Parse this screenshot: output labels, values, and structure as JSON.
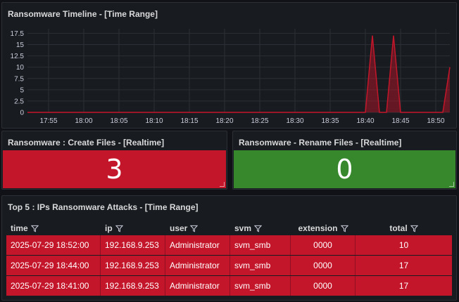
{
  "timeline": {
    "title": "Ransomware Timeline - [Time Range]",
    "chart_data": {
      "type": "line",
      "ylim": [
        0,
        18.5
      ],
      "y_ticks": [
        "0",
        "2.5",
        "5",
        "7.5",
        "10",
        "12.5",
        "15",
        "17.5"
      ],
      "x_ticks": [
        "17:55",
        "18:00",
        "18:05",
        "18:10",
        "18:15",
        "18:20",
        "18:25",
        "18:30",
        "18:35",
        "18:40",
        "18:45",
        "18:50"
      ],
      "series": [
        {
          "color": "#c4162a",
          "points": [
            [
              "17:52",
              0
            ],
            [
              "18:40",
              0
            ],
            [
              "18:41",
              17
            ],
            [
              "18:42",
              0
            ],
            [
              "18:43",
              0
            ],
            [
              "18:44",
              17
            ],
            [
              "18:45",
              0
            ],
            [
              "18:51",
              0
            ],
            [
              "18:52",
              10
            ]
          ]
        }
      ],
      "grid": true
    }
  },
  "stat_create": {
    "title": "Ransomware : Create Files - [Realtime]",
    "value": "3",
    "color": "#c4162a"
  },
  "stat_rename": {
    "title": "Ransomware - Rename Files - [Realtime]",
    "value": "0",
    "color": "#37872d"
  },
  "table": {
    "title": "Top 5 : IPs Ransomware Attacks - [Time Range]",
    "columns": [
      "time",
      "ip",
      "user",
      "svm",
      "extension",
      "total"
    ],
    "rows": [
      [
        "2025-07-29 18:52:00",
        "192.168.9.253",
        "Administrator",
        "svm_smb",
        "0000",
        "10"
      ],
      [
        "2025-07-29 18:44:00",
        "192.168.9.253",
        "Administrator",
        "svm_smb",
        "0000",
        "17"
      ],
      [
        "2025-07-29 18:41:00",
        "192.168.9.253",
        "Administrator",
        "svm_smb",
        "0000",
        "17"
      ]
    ],
    "row_color": "#c4162a"
  }
}
